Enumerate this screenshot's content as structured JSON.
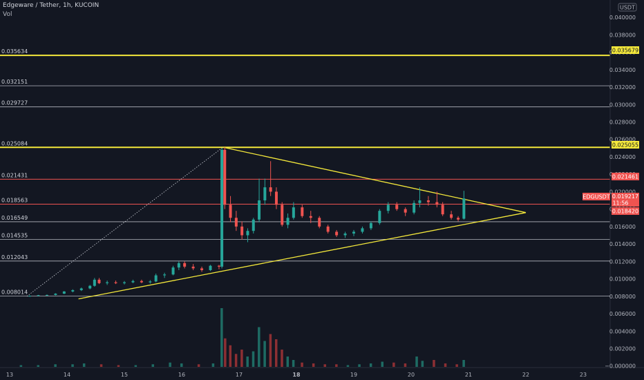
{
  "header": {
    "symbol_title": "Edgeware / Tether, 1h, KUCOIN",
    "volume_label": "Vol"
  },
  "axis": {
    "currency_badge": "USDT",
    "price_ticks": [
      "0.040000",
      "0.038000",
      "0.036000",
      "0.034000",
      "0.032000",
      "0.030000",
      "0.028000",
      "0.026000",
      "0.024000",
      "0.022000",
      "0.020000",
      "0.018000",
      "0.016000",
      "0.014000",
      "0.012000",
      "0.010000",
      "0.008000",
      "0.006000",
      "0.004000",
      "0.002000",
      "0.000000"
    ],
    "x_ticks": [
      "13",
      "14",
      "15",
      "16",
      "17",
      "18",
      "19",
      "20",
      "21",
      "22",
      "23"
    ]
  },
  "price_tags": {
    "level_35679": "0.035679",
    "level_25055": "0.025055",
    "level_21461": "0.021461",
    "symbol": "EDGUSDT",
    "last_price": "0.019217",
    "countdown": "11:56",
    "level_18420": "0.018420"
  },
  "colors": {
    "background": "#131722",
    "grid_line": "#d1d4dc",
    "yellow_line": "#f5e93b",
    "red_line": "#ef5350",
    "candle_up": "#26a69a",
    "candle_down": "#ef5350",
    "volume_up": "#1e6b63",
    "volume_down": "#8c2f33",
    "tag_text_dark": "#131722",
    "tag_text_light": "#ffffff"
  },
  "chart_data": {
    "type": "candlestick",
    "y_scale": "linear",
    "x_tick_labels": [
      "13",
      "14",
      "15",
      "16",
      "17",
      "18",
      "19",
      "20",
      "21",
      "22",
      "23"
    ],
    "ylim": [
      -0.0001,
      0.0408
    ],
    "horizontal_levels": [
      {
        "value": 0.035634,
        "label": "0.035634",
        "style": "yellow-thick"
      },
      {
        "value": 0.032151,
        "label": "0.032151",
        "style": "white"
      },
      {
        "value": 0.029727,
        "label": "0.029727",
        "style": "white"
      },
      {
        "value": 0.025084,
        "label": "0.025084",
        "style": "yellow-thick"
      },
      {
        "value": 0.021431,
        "label": "0.021431",
        "style": "red"
      },
      {
        "value": 0.018563,
        "label": "0.018563",
        "style": "red"
      },
      {
        "value": 0.016549,
        "label": "0.016549",
        "style": "white"
      },
      {
        "value": 0.014535,
        "label": "0.014535",
        "style": "white"
      },
      {
        "value": 0.012043,
        "label": "0.012043",
        "style": "white"
      },
      {
        "value": 0.008014,
        "label": "0.008014",
        "style": "white"
      }
    ],
    "trend_lines": [
      {
        "from": [
          13.3,
          0.008
        ],
        "to": [
          16.72,
          0.0251
        ],
        "style": "dotted"
      },
      {
        "from": [
          16.72,
          0.0251
        ],
        "to": [
          22.0,
          0.0176
        ],
        "style": "yellow"
      },
      {
        "from": [
          14.2,
          0.0077
        ],
        "to": [
          22.0,
          0.0176
        ],
        "style": "yellow"
      }
    ],
    "candles": [
      {
        "d": 13.35,
        "o": 0.00802,
        "h": 0.0081,
        "l": 0.00795,
        "c": 0.00805
      },
      {
        "d": 13.5,
        "o": 0.00805,
        "h": 0.00815,
        "l": 0.008,
        "c": 0.00812
      },
      {
        "d": 13.65,
        "o": 0.00812,
        "h": 0.0082,
        "l": 0.00805,
        "c": 0.00815
      },
      {
        "d": 13.8,
        "o": 0.00815,
        "h": 0.00835,
        "l": 0.0081,
        "c": 0.0083
      },
      {
        "d": 13.95,
        "o": 0.0083,
        "h": 0.0086,
        "l": 0.00825,
        "c": 0.00855
      },
      {
        "d": 14.1,
        "o": 0.00855,
        "h": 0.0088,
        "l": 0.00845,
        "c": 0.0087
      },
      {
        "d": 14.25,
        "o": 0.0087,
        "h": 0.009,
        "l": 0.0086,
        "c": 0.0089
      },
      {
        "d": 14.4,
        "o": 0.0089,
        "h": 0.0093,
        "l": 0.0088,
        "c": 0.0092
      },
      {
        "d": 14.48,
        "o": 0.0092,
        "h": 0.0101,
        "l": 0.0091,
        "c": 0.0099
      },
      {
        "d": 14.56,
        "o": 0.0099,
        "h": 0.0101,
        "l": 0.0094,
        "c": 0.0095
      },
      {
        "d": 14.7,
        "o": 0.0095,
        "h": 0.0098,
        "l": 0.0093,
        "c": 0.0096
      },
      {
        "d": 14.85,
        "o": 0.0096,
        "h": 0.0098,
        "l": 0.0094,
        "c": 0.0095
      },
      {
        "d": 15.0,
        "o": 0.0095,
        "h": 0.00975,
        "l": 0.00935,
        "c": 0.0096
      },
      {
        "d": 15.15,
        "o": 0.0096,
        "h": 0.0099,
        "l": 0.0095,
        "c": 0.00975
      },
      {
        "d": 15.3,
        "o": 0.00975,
        "h": 0.0099,
        "l": 0.0095,
        "c": 0.0096
      },
      {
        "d": 15.45,
        "o": 0.0096,
        "h": 0.00985,
        "l": 0.00945,
        "c": 0.0097
      },
      {
        "d": 15.55,
        "o": 0.0097,
        "h": 0.0106,
        "l": 0.0096,
        "c": 0.0104
      },
      {
        "d": 15.7,
        "o": 0.0104,
        "h": 0.0107,
        "l": 0.0101,
        "c": 0.0105
      },
      {
        "d": 15.85,
        "o": 0.0105,
        "h": 0.0115,
        "l": 0.0104,
        "c": 0.0113
      },
      {
        "d": 15.95,
        "o": 0.0113,
        "h": 0.012,
        "l": 0.011,
        "c": 0.0118
      },
      {
        "d": 16.05,
        "o": 0.0118,
        "h": 0.012,
        "l": 0.0112,
        "c": 0.0114
      },
      {
        "d": 16.2,
        "o": 0.0114,
        "h": 0.0117,
        "l": 0.011,
        "c": 0.0112
      },
      {
        "d": 16.35,
        "o": 0.0112,
        "h": 0.0114,
        "l": 0.0108,
        "c": 0.011
      },
      {
        "d": 16.5,
        "o": 0.011,
        "h": 0.0116,
        "l": 0.0109,
        "c": 0.0115
      },
      {
        "d": 16.65,
        "o": 0.0115,
        "h": 0.0116,
        "l": 0.0111,
        "c": 0.0114
      },
      {
        "d": 16.7,
        "o": 0.0114,
        "h": 0.025,
        "l": 0.0112,
        "c": 0.0248
      },
      {
        "d": 16.75,
        "o": 0.0248,
        "h": 0.0251,
        "l": 0.018,
        "c": 0.0185
      },
      {
        "d": 16.85,
        "o": 0.0185,
        "h": 0.0195,
        "l": 0.0165,
        "c": 0.017
      },
      {
        "d": 16.95,
        "o": 0.017,
        "h": 0.0178,
        "l": 0.0155,
        "c": 0.016
      },
      {
        "d": 17.05,
        "o": 0.016,
        "h": 0.0166,
        "l": 0.0145,
        "c": 0.015
      },
      {
        "d": 17.15,
        "o": 0.015,
        "h": 0.0158,
        "l": 0.0142,
        "c": 0.0155
      },
      {
        "d": 17.25,
        "o": 0.0155,
        "h": 0.017,
        "l": 0.0152,
        "c": 0.0168
      },
      {
        "d": 17.35,
        "o": 0.0168,
        "h": 0.0215,
        "l": 0.0165,
        "c": 0.019
      },
      {
        "d": 17.45,
        "o": 0.019,
        "h": 0.0215,
        "l": 0.0185,
        "c": 0.0205
      },
      {
        "d": 17.55,
        "o": 0.0205,
        "h": 0.0235,
        "l": 0.0195,
        "c": 0.02
      },
      {
        "d": 17.65,
        "o": 0.02,
        "h": 0.0205,
        "l": 0.018,
        "c": 0.0185
      },
      {
        "d": 17.75,
        "o": 0.0185,
        "h": 0.0188,
        "l": 0.016,
        "c": 0.0162
      },
      {
        "d": 17.85,
        "o": 0.0162,
        "h": 0.0175,
        "l": 0.0158,
        "c": 0.017
      },
      {
        "d": 17.95,
        "o": 0.017,
        "h": 0.0188,
        "l": 0.0168,
        "c": 0.0182
      },
      {
        "d": 18.1,
        "o": 0.0182,
        "h": 0.0185,
        "l": 0.017,
        "c": 0.0172
      },
      {
        "d": 18.25,
        "o": 0.0172,
        "h": 0.0178,
        "l": 0.0164,
        "c": 0.017
      },
      {
        "d": 18.4,
        "o": 0.017,
        "h": 0.0172,
        "l": 0.0158,
        "c": 0.016
      },
      {
        "d": 18.55,
        "o": 0.016,
        "h": 0.0162,
        "l": 0.0152,
        "c": 0.0154
      },
      {
        "d": 18.7,
        "o": 0.0154,
        "h": 0.0156,
        "l": 0.0148,
        "c": 0.015
      },
      {
        "d": 18.85,
        "o": 0.015,
        "h": 0.0154,
        "l": 0.0147,
        "c": 0.0152
      },
      {
        "d": 19.0,
        "o": 0.0152,
        "h": 0.0156,
        "l": 0.0149,
        "c": 0.0154
      },
      {
        "d": 19.15,
        "o": 0.0154,
        "h": 0.016,
        "l": 0.0152,
        "c": 0.0158
      },
      {
        "d": 19.3,
        "o": 0.0158,
        "h": 0.0166,
        "l": 0.0156,
        "c": 0.0164
      },
      {
        "d": 19.45,
        "o": 0.0164,
        "h": 0.018,
        "l": 0.0162,
        "c": 0.0178
      },
      {
        "d": 19.6,
        "o": 0.0178,
        "h": 0.0188,
        "l": 0.0175,
        "c": 0.0185
      },
      {
        "d": 19.75,
        "o": 0.0185,
        "h": 0.0188,
        "l": 0.0178,
        "c": 0.018
      },
      {
        "d": 19.9,
        "o": 0.018,
        "h": 0.0182,
        "l": 0.0172,
        "c": 0.0176
      },
      {
        "d": 20.05,
        "o": 0.0176,
        "h": 0.019,
        "l": 0.0174,
        "c": 0.0187
      },
      {
        "d": 20.15,
        "o": 0.0187,
        "h": 0.0205,
        "l": 0.0182,
        "c": 0.019
      },
      {
        "d": 20.3,
        "o": 0.019,
        "h": 0.0195,
        "l": 0.0184,
        "c": 0.0188
      },
      {
        "d": 20.45,
        "o": 0.0188,
        "h": 0.02,
        "l": 0.0182,
        "c": 0.0185
      },
      {
        "d": 20.55,
        "o": 0.0185,
        "h": 0.0188,
        "l": 0.0172,
        "c": 0.0174
      },
      {
        "d": 20.7,
        "o": 0.0174,
        "h": 0.0178,
        "l": 0.0168,
        "c": 0.017
      },
      {
        "d": 20.82,
        "o": 0.017,
        "h": 0.0172,
        "l": 0.0166,
        "c": 0.0168
      },
      {
        "d": 20.92,
        "o": 0.0169,
        "h": 0.0201,
        "l": 0.0168,
        "c": 0.01922
      }
    ],
    "volume": [
      {
        "d": 13.2,
        "v": 0.0002
      },
      {
        "d": 13.5,
        "v": 0.0002
      },
      {
        "d": 13.8,
        "v": 0.0003
      },
      {
        "d": 14.1,
        "v": 0.0003
      },
      {
        "d": 14.3,
        "v": 0.0004
      },
      {
        "d": 14.6,
        "v": 0.0003
      },
      {
        "d": 14.9,
        "v": 0.0002
      },
      {
        "d": 15.2,
        "v": 0.0002
      },
      {
        "d": 15.5,
        "v": 0.0003
      },
      {
        "d": 15.8,
        "v": 0.0005
      },
      {
        "d": 16.0,
        "v": 0.0004
      },
      {
        "d": 16.3,
        "v": 0.0003
      },
      {
        "d": 16.55,
        "v": 0.0004
      },
      {
        "d": 16.7,
        "v": 0.0068
      },
      {
        "d": 16.76,
        "v": 0.0033
      },
      {
        "d": 16.85,
        "v": 0.0025
      },
      {
        "d": 16.95,
        "v": 0.0015
      },
      {
        "d": 17.05,
        "v": 0.002
      },
      {
        "d": 17.15,
        "v": 0.0012
      },
      {
        "d": 17.25,
        "v": 0.0018
      },
      {
        "d": 17.35,
        "v": 0.0046
      },
      {
        "d": 17.45,
        "v": 0.003
      },
      {
        "d": 17.55,
        "v": 0.0038
      },
      {
        "d": 17.65,
        "v": 0.0032
      },
      {
        "d": 17.75,
        "v": 0.002
      },
      {
        "d": 17.85,
        "v": 0.0012
      },
      {
        "d": 17.95,
        "v": 0.0008
      },
      {
        "d": 18.1,
        "v": 0.0005
      },
      {
        "d": 18.3,
        "v": 0.0004
      },
      {
        "d": 18.5,
        "v": 0.0003
      },
      {
        "d": 18.7,
        "v": 0.0003
      },
      {
        "d": 18.9,
        "v": 0.0002
      },
      {
        "d": 19.1,
        "v": 0.0003
      },
      {
        "d": 19.3,
        "v": 0.0004
      },
      {
        "d": 19.5,
        "v": 0.0006
      },
      {
        "d": 19.7,
        "v": 0.0005
      },
      {
        "d": 19.9,
        "v": 0.0004
      },
      {
        "d": 20.1,
        "v": 0.0012
      },
      {
        "d": 20.2,
        "v": 0.0007
      },
      {
        "d": 20.4,
        "v": 0.0008
      },
      {
        "d": 20.6,
        "v": 0.0004
      },
      {
        "d": 20.8,
        "v": 0.0003
      },
      {
        "d": 20.92,
        "v": 0.0008
      }
    ]
  }
}
